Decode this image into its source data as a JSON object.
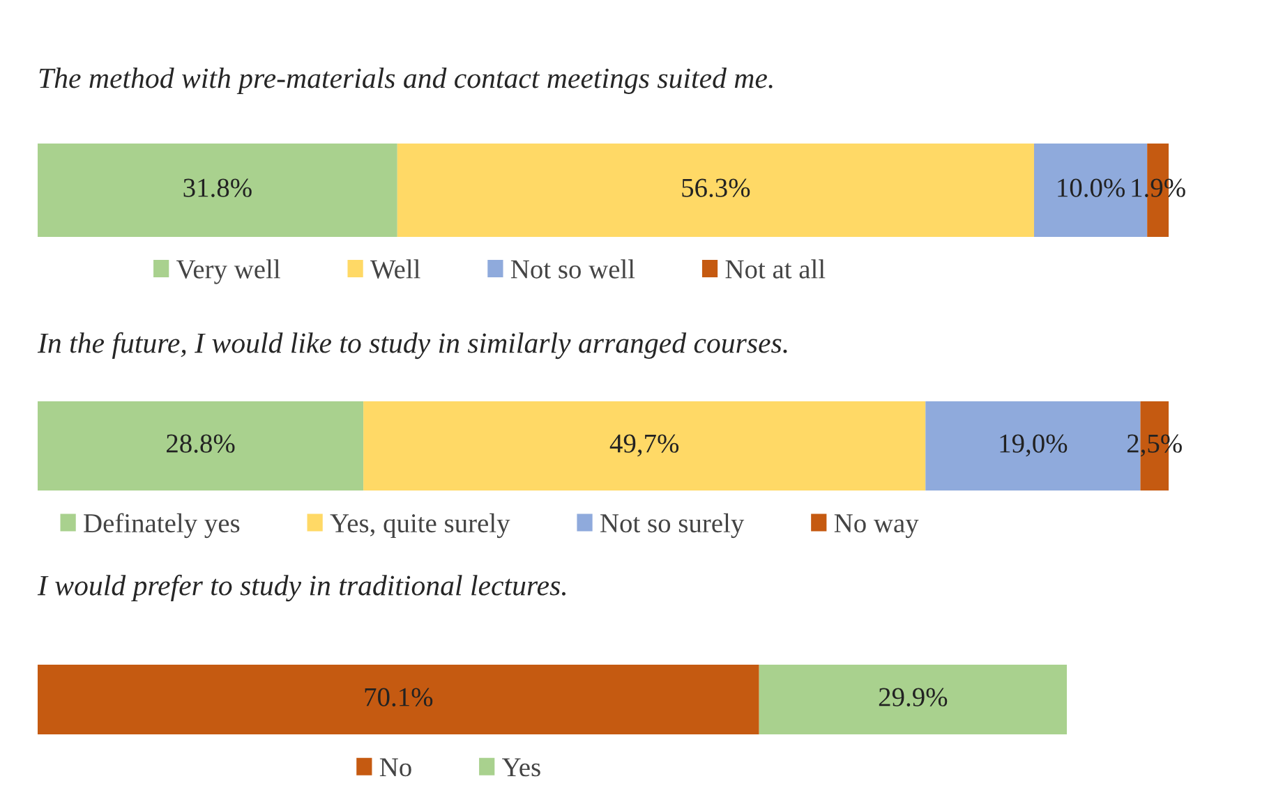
{
  "chart_data": [
    {
      "type": "bar",
      "orientation": "horizontal",
      "stacked": true,
      "title": "The method with pre-materials and contact meetings suited me.",
      "categories": [
        null
      ],
      "legend": "bottom",
      "series": [
        {
          "name": "Very well",
          "color": "#a9d18e",
          "values": [
            31.8
          ],
          "value_labels": [
            "31.8%"
          ]
        },
        {
          "name": "Well",
          "color": "#ffd966",
          "values": [
            56.3
          ],
          "value_labels": [
            "56.3%"
          ]
        },
        {
          "name": "Not so well",
          "color": "#8faadc",
          "values": [
            10.0
          ],
          "value_labels": [
            "10.0%"
          ]
        },
        {
          "name": "Not at all",
          "color": "#c55a11",
          "values": [
            1.9
          ],
          "value_labels": [
            "1.9%"
          ]
        }
      ]
    },
    {
      "type": "bar",
      "orientation": "horizontal",
      "stacked": true,
      "title": "In the future, I would like to study in similarly arranged courses.",
      "categories": [
        null
      ],
      "legend": "bottom",
      "series": [
        {
          "name": "Definately yes",
          "color": "#a9d18e",
          "values": [
            28.8
          ],
          "value_labels": [
            "28.8%"
          ]
        },
        {
          "name": "Yes, quite surely",
          "color": "#ffd966",
          "values": [
            49.7
          ],
          "value_labels": [
            "49,7%"
          ]
        },
        {
          "name": "Not so surely",
          "color": "#8faadc",
          "values": [
            19.0
          ],
          "value_labels": [
            "19,0%"
          ]
        },
        {
          "name": "No way",
          "color": "#c55a11",
          "values": [
            2.5
          ],
          "value_labels": [
            "2,5%"
          ]
        }
      ]
    },
    {
      "type": "bar",
      "orientation": "horizontal",
      "stacked": true,
      "title": "I would prefer to study in traditional lectures.",
      "categories": [
        null
      ],
      "legend": "bottom",
      "series": [
        {
          "name": "No",
          "color": "#c55a11",
          "values": [
            70.1
          ],
          "value_labels": [
            "70.1%"
          ]
        },
        {
          "name": "Yes",
          "color": "#a9d18e",
          "values": [
            29.9
          ],
          "value_labels": [
            "29.9%"
          ]
        }
      ]
    }
  ]
}
